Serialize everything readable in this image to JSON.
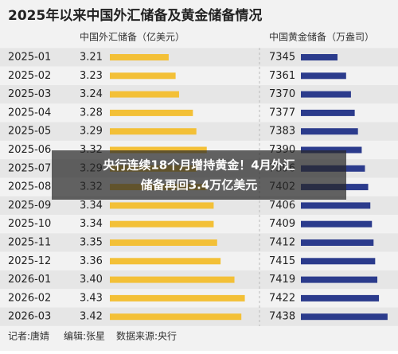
{
  "chart_data": {
    "type": "bar",
    "orientation": "horizontal",
    "title": "2025年以来中国外汇储备及黄金储备情况",
    "categories": [
      "2025-01",
      "2025-02",
      "2025-03",
      "2025-04",
      "2025-05",
      "2025-06",
      "2025-07",
      "2025-08",
      "2025-09",
      "2025-10",
      "2025-11",
      "2025-12",
      "2026-01",
      "2026-02",
      "2026-03"
    ],
    "series": [
      {
        "name": "中国外汇储备（亿美元）",
        "color": "#f3c037",
        "values": [
          3.21,
          3.23,
          3.24,
          3.28,
          3.29,
          3.32,
          3.29,
          3.32,
          3.34,
          3.34,
          3.35,
          3.36,
          3.4,
          3.43,
          3.42
        ],
        "value_labels": [
          "3.21",
          "3.23",
          "3.24",
          "3.28",
          "3.29",
          "3.32",
          "3.29",
          "3.32",
          "3.34",
          "3.34",
          "3.35",
          "3.36",
          "3.40",
          "3.43",
          "3.42"
        ],
        "xlim": [
          3.04,
          3.5
        ]
      },
      {
        "name": "中国黄金储备（万盎司）",
        "color": "#2b3b8c",
        "values": [
          7345,
          7361,
          7370,
          7377,
          7383,
          7390,
          7396,
          7402,
          7406,
          7409,
          7412,
          7415,
          7419,
          7422,
          7438
        ],
        "xlim": [
          7277,
          7450
        ]
      }
    ],
    "caption": [
      "央行连续18个月增持黄金！4月外汇",
      "储备再回3.4万亿美元"
    ],
    "footer": [
      "记者:唐婧",
      "编辑:张星",
      "数据来源:央行"
    ]
  }
}
